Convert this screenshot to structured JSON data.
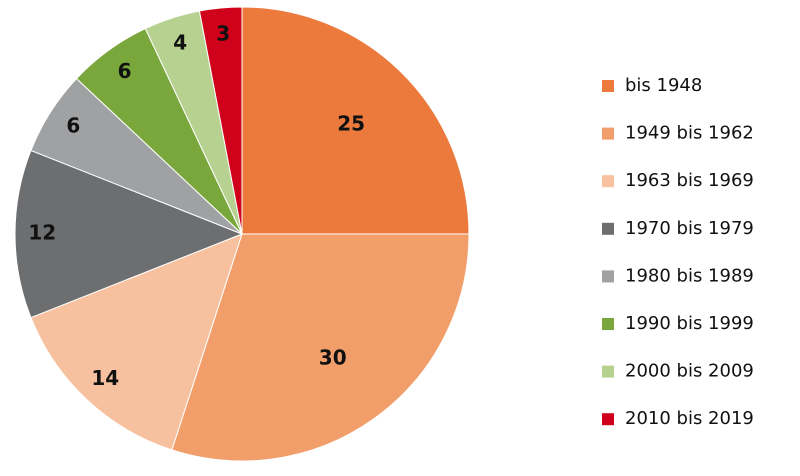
{
  "chart_data": {
    "type": "pie",
    "categories": [
      "bis 1948",
      "1949 bis 1962",
      "1963 bis 1969",
      "1970 bis 1979",
      "1980 bis 1989",
      "1990 bis 1999",
      "2000 bis 2009",
      "2010 bis 2019"
    ],
    "values": [
      25,
      30,
      14,
      12,
      6,
      6,
      4,
      3
    ],
    "colors": [
      "#ec7a3c",
      "#f29e6b",
      "#f7c19f",
      "#6d6e70",
      "#a0a1a3",
      "#7aa73c",
      "#b7d190",
      "#d0021b"
    ],
    "legend": "right"
  }
}
